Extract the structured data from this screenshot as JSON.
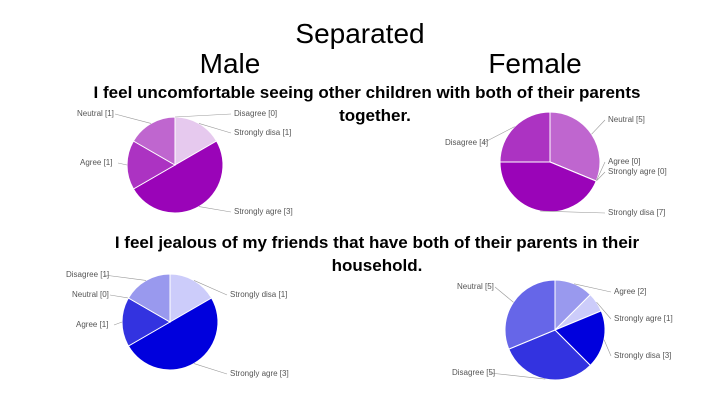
{
  "slide": {
    "title": "Separated",
    "left_heading": "Male",
    "right_heading": "Female",
    "questions": [
      [
        "I feel uncomfortable seeing other children with both of their parents",
        "together."
      ],
      [
        "I feel jealous of my friends that have both of their parents in their",
        "household."
      ]
    ]
  },
  "chart_data": [
    {
      "type": "pie",
      "categories": [
        "Strongly disa [1]",
        "Strongly agre [3]",
        "Agree [1]",
        "Neutral [1]",
        "Disagree [0]"
      ],
      "values": [
        1,
        3,
        1,
        1,
        0
      ],
      "colors": [
        "#e6c9ee",
        "#9a04b8",
        "#ac33c2",
        "#bf66cf",
        "#cf8fdc"
      ]
    },
    {
      "type": "pie",
      "categories": [
        "Neutral [5]",
        "Agree [0]",
        "Strongly agre [0]",
        "Strongly disa [7]",
        "Disagree [4]"
      ],
      "values": [
        5,
        0,
        0,
        7,
        4
      ],
      "colors": [
        "#bf66cf",
        "#e6c9ee",
        "#d9a6e3",
        "#9a04b8",
        "#ac33c2"
      ]
    },
    {
      "type": "pie",
      "categories": [
        "Strongly disa [1]",
        "Strongly agre [3]",
        "Agree [1]",
        "Neutral [0]",
        "Disagree [1]"
      ],
      "values": [
        1,
        3,
        1,
        0,
        1
      ],
      "colors": [
        "#ccccfa",
        "#0000dd",
        "#3333e0",
        "#6666e8",
        "#9999ee"
      ]
    },
    {
      "type": "pie",
      "categories": [
        "Agree [2]",
        "Strongly agre [1]",
        "Strongly disa [3]",
        "Disagree [5]",
        "Neutral [5]"
      ],
      "values": [
        2,
        1,
        3,
        5,
        5
      ],
      "colors": [
        "#9999ee",
        "#ccccfa",
        "#0000dd",
        "#3333e0",
        "#6666e8"
      ]
    }
  ]
}
